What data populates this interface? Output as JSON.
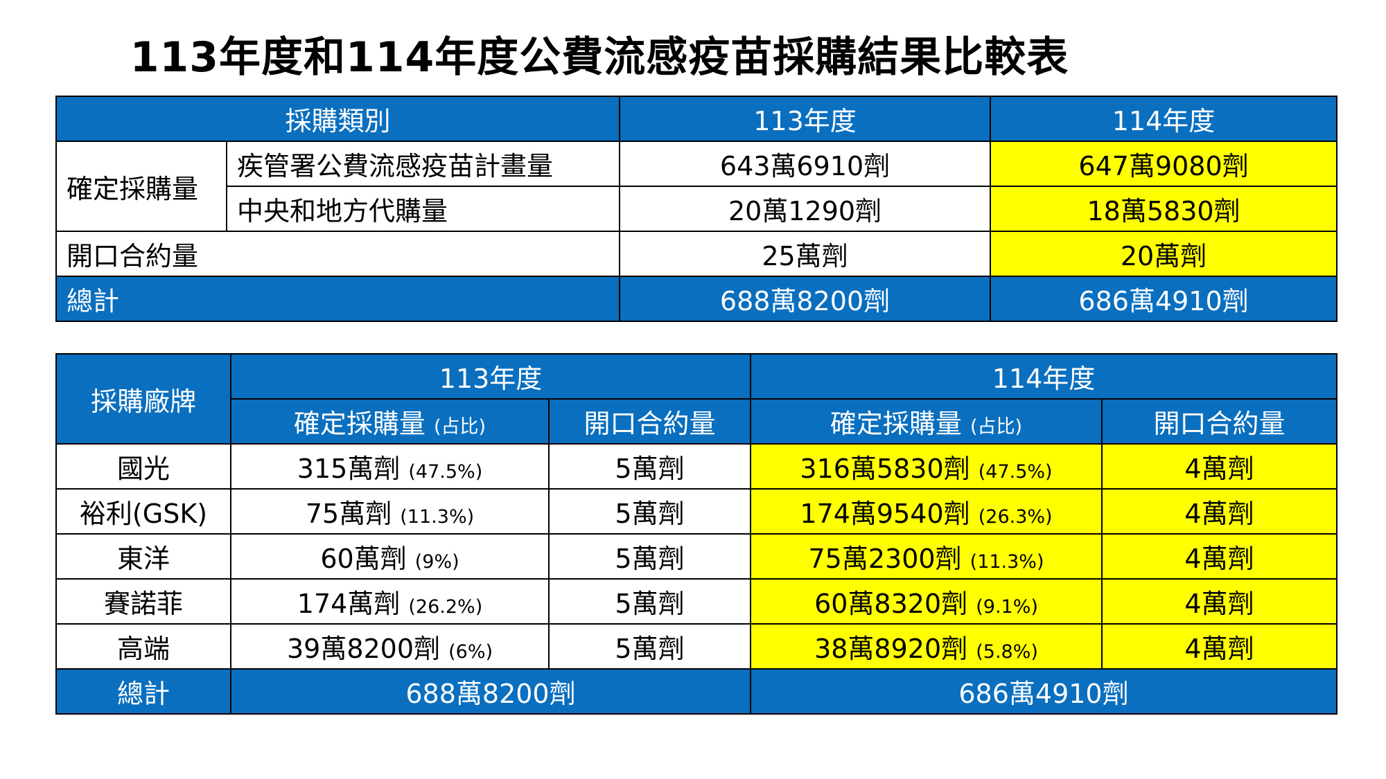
{
  "title": "113年度和114年度公費流感疫苗採購結果比較表",
  "colors": {
    "header_blue": "#0b6fc0",
    "highlight_yellow": "#ffff00"
  },
  "table1": {
    "header": {
      "category": "採購類別",
      "y113": "113年度",
      "y114": "114年度"
    },
    "confirmed_label": "確定採購量",
    "rows": [
      {
        "label": "疾管署公費流感疫苗計畫量",
        "y113": "643萬6910劑",
        "y114": "647萬9080劑"
      },
      {
        "label": "中央和地方代購量",
        "y113": "20萬1290劑",
        "y114": "18萬5830劑"
      }
    ],
    "open_contract": {
      "label": "開口合約量",
      "y113": "25萬劑",
      "y114": "20萬劑"
    },
    "total": {
      "label": "總計",
      "y113": "688萬8200劑",
      "y114": "686萬4910劑"
    }
  },
  "table2": {
    "header": {
      "brand": "採購廠牌",
      "y113": "113年度",
      "y114": "114年度",
      "confirmed": "確定採購量",
      "share": "(占比)",
      "open": "開口合約量"
    },
    "rows": [
      {
        "brand": "國光",
        "y113_amount": "315萬劑",
        "y113_pct": "(47.5%)",
        "y113_open": "5萬劑",
        "y114_amount": "316萬5830劑",
        "y114_pct": "(47.5%)",
        "y114_open": "4萬劑"
      },
      {
        "brand": "裕利(GSK)",
        "y113_amount": "75萬劑",
        "y113_pct": "(11.3%)",
        "y113_open": "5萬劑",
        "y114_amount": "174萬9540劑",
        "y114_pct": "(26.3%)",
        "y114_open": "4萬劑"
      },
      {
        "brand": "東洋",
        "y113_amount": "60萬劑",
        "y113_pct": "(9%)",
        "y113_open": "5萬劑",
        "y114_amount": "75萬2300劑",
        "y114_pct": "(11.3%)",
        "y114_open": "4萬劑"
      },
      {
        "brand": "賽諾菲",
        "y113_amount": "174萬劑",
        "y113_pct": "(26.2%)",
        "y113_open": "5萬劑",
        "y114_amount": "60萬8320劑",
        "y114_pct": "(9.1%)",
        "y114_open": "4萬劑"
      },
      {
        "brand": "高端",
        "y113_amount": "39萬8200劑",
        "y113_pct": "(6%)",
        "y113_open": "5萬劑",
        "y114_amount": "38萬8920劑",
        "y114_pct": "(5.8%)",
        "y114_open": "4萬劑"
      }
    ],
    "total": {
      "label": "總計",
      "y113": "688萬8200劑",
      "y114": "686萬4910劑"
    }
  }
}
